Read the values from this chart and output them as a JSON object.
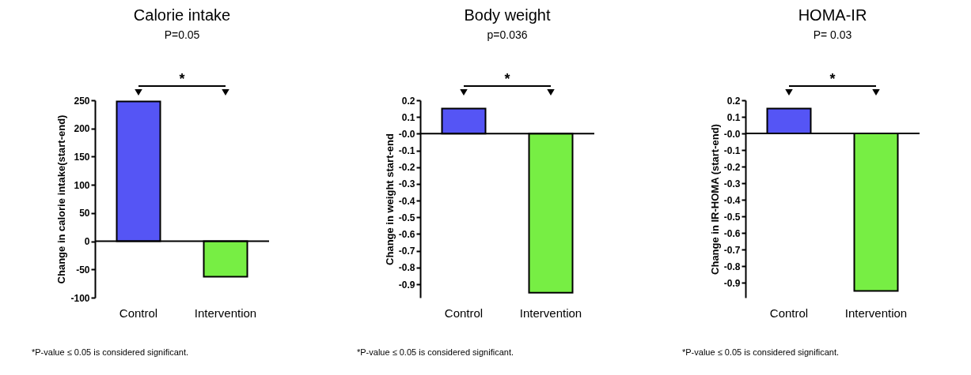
{
  "chart_data": [
    {
      "type": "bar",
      "title": "Calorie intake",
      "subtitle": "P=0.05",
      "ylabel": "Change in calorie intake(start-end)",
      "categories": [
        "Control",
        "Intervention"
      ],
      "values": [
        248,
        -63
      ],
      "colors": [
        "#5555f5",
        "#77ee44"
      ],
      "ylim": [
        -100,
        250
      ],
      "yticks": [
        -100,
        -50,
        0,
        50,
        100,
        150,
        200,
        250
      ],
      "annotations": [
        "*",
        "*P-value ≤ 0.05 is considered significant."
      ]
    },
    {
      "type": "bar",
      "title": "Body weight",
      "subtitle": "p=0.036",
      "ylabel": "Change in weight start-end",
      "categories": [
        "Control",
        "Intervention"
      ],
      "values": [
        0.15,
        -0.95
      ],
      "colors": [
        "#5555f5",
        "#77ee44"
      ],
      "ylim": [
        -0.98,
        0.2
      ],
      "yticks": [
        -0.9,
        -0.8,
        -0.7,
        -0.6,
        -0.5,
        -0.4,
        -0.3,
        -0.2,
        -0.1,
        {
          "value": 0,
          "label": "-0.0"
        },
        0.1,
        0.2
      ],
      "annotations": [
        "*",
        "*P-value ≤ 0.05 is considered significant."
      ]
    },
    {
      "type": "bar",
      "title": "HOMA-IR",
      "subtitle": "P= 0.03",
      "ylabel": "Change in IR-HOMA (start-end)",
      "categories": [
        "Control",
        "Intervention"
      ],
      "values": [
        0.15,
        -0.95
      ],
      "colors": [
        "#5555f5",
        "#77ee44"
      ],
      "ylim": [
        -0.99,
        0.2
      ],
      "yticks": [
        -0.9,
        -0.8,
        -0.7,
        -0.6,
        -0.5,
        -0.4,
        -0.3,
        -0.2,
        -0.1,
        {
          "value": 0,
          "label": "-0.0"
        },
        0.1,
        0.2
      ],
      "annotations": [
        "*",
        "*P-value ≤ 0.05 is considered significant."
      ]
    }
  ]
}
